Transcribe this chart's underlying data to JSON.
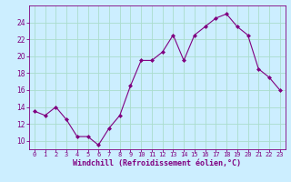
{
  "x": [
    0,
    1,
    2,
    3,
    4,
    5,
    6,
    7,
    8,
    9,
    10,
    11,
    12,
    13,
    14,
    15,
    16,
    17,
    18,
    19,
    20,
    21,
    22,
    23
  ],
  "y": [
    13.5,
    13.0,
    14.0,
    12.5,
    10.5,
    10.5,
    9.5,
    11.5,
    13.0,
    16.5,
    19.5,
    19.5,
    20.5,
    22.5,
    19.5,
    22.5,
    23.5,
    24.5,
    25.0,
    23.5,
    22.5,
    18.5,
    17.5,
    16.0
  ],
  "line_color": "#800080",
  "marker": "D",
  "marker_size": 2,
  "bg_color": "#cceeff",
  "grid_color": "#aaddcc",
  "xlabel": "Windchill (Refroidissement éolien,°C)",
  "ylim": [
    9,
    26
  ],
  "yticks": [
    10,
    12,
    14,
    16,
    18,
    20,
    22,
    24
  ],
  "xlim": [
    -0.5,
    23.5
  ],
  "xticks": [
    0,
    1,
    2,
    3,
    4,
    5,
    6,
    7,
    8,
    9,
    10,
    11,
    12,
    13,
    14,
    15,
    16,
    17,
    18,
    19,
    20,
    21,
    22,
    23
  ],
  "line_color_hex": "#800080",
  "tick_color": "#800080",
  "xlabel_fontsize": 6.0,
  "ytick_fontsize": 5.5,
  "xtick_fontsize": 5.0
}
